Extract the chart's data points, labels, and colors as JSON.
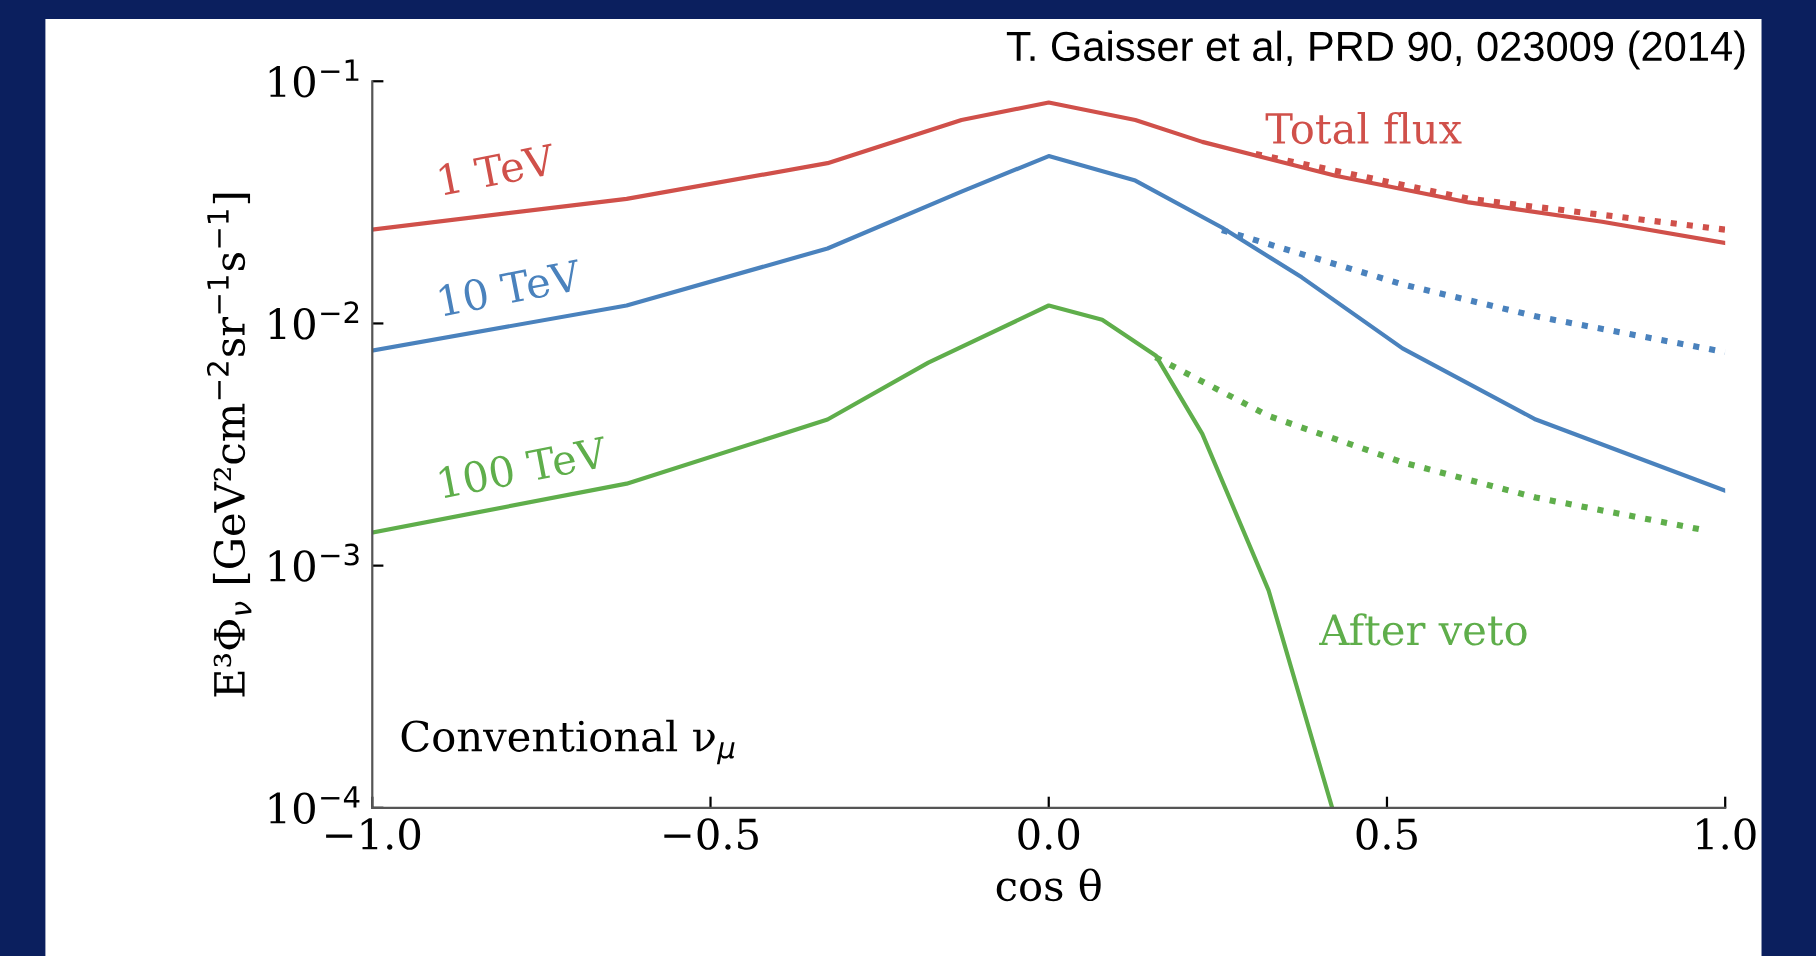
{
  "chart_data": {
    "type": "line",
    "xlabel": "cos θ",
    "ylabel": "E³Φ$_{ν}$ [GeV²cm$^{−2}$sr$^{−1}$s$^{−1}$]",
    "log": "y",
    "grid": false,
    "legend": false,
    "xlim": [
      -1.0,
      1.0
    ],
    "ylim": [
      0.0001,
      0.1
    ],
    "xticks": [
      {
        "value": -1.0,
        "label": "−1.0"
      },
      {
        "value": -0.5,
        "label": "−0.5"
      },
      {
        "value": 0.0,
        "label": "0.0"
      },
      {
        "value": 0.5,
        "label": "0.5"
      },
      {
        "value": 1.0,
        "label": "1.0"
      }
    ],
    "yticks": [
      {
        "value": 0.0001,
        "label": "10$^{−4}$"
      },
      {
        "value": 0.001,
        "label": "10$^{−3}$"
      },
      {
        "value": 0.01,
        "label": "10$^{−2}$"
      },
      {
        "value": 0.1,
        "label": "10$^{−1}$"
      }
    ],
    "series": [
      {
        "name": "1 TeV",
        "color": "#d0504a",
        "line_style": "solid",
        "x": [
          -1,
          -0.624,
          -0.327,
          -0.129,
          0,
          0.128,
          0.227,
          0.424,
          0.621,
          0.818,
          1.0
        ],
        "values": [
          0.0244,
          0.0327,
          0.0459,
          0.0692,
          0.0817,
          0.0692,
          0.0562,
          0.0407,
          0.0316,
          0.0263,
          0.0215
        ]
      },
      {
        "color": "#d0504a",
        "line_style": "dotted",
        "x": [
          0.306,
          0.621,
          1.0
        ],
        "values": [
          0.0501,
          0.0327,
          0.0244
        ]
      },
      {
        "name": "10 TeV",
        "color": "#4a82bd",
        "line_style": "solid",
        "x": [
          -1,
          -0.624,
          -0.327,
          -0.129,
          0,
          0.128,
          0.256,
          0.374,
          0.523,
          0.72,
          1.0
        ],
        "values": [
          0.00773,
          0.01186,
          0.0204,
          0.035,
          0.0491,
          0.0389,
          0.0249,
          0.0155,
          0.00789,
          0.00401,
          0.00204
        ]
      },
      {
        "color": "#4a82bd",
        "line_style": "dotted",
        "x": [
          0.256,
          0.523,
          0.72,
          1.0
        ],
        "values": [
          0.0243,
          0.0145,
          0.0107,
          0.00762
        ]
      },
      {
        "name": "100 TeV",
        "color": "#5fae4b",
        "line_style": "solid",
        "x": [
          -1,
          -0.624,
          -0.327,
          -0.178,
          0,
          0.079,
          0.158,
          0.227,
          0.325,
          0.419
        ],
        "values": [
          0.00137,
          0.00218,
          0.00401,
          0.00689,
          0.01186,
          0.01035,
          0.00738,
          0.0035,
          0.00079,
          0.0001
        ]
      },
      {
        "color": "#5fae4b",
        "line_style": "dotted",
        "x": [
          0.158,
          0.325,
          0.523,
          0.72,
          0.97
        ],
        "values": [
          0.00725,
          0.00415,
          0.00267,
          0.00191,
          0.0014
        ]
      }
    ],
    "annotations": [
      "Total flux",
      "After veto",
      "Conventional ν$_{μ}$",
      "T. Gaisser et al, PRD 90, 023009 (2014)"
    ]
  }
}
